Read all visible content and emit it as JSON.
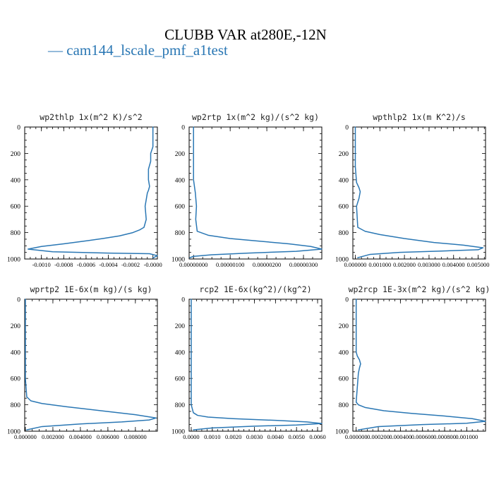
{
  "title": "CLUBB VAR at280E,-12N",
  "legend": {
    "label": "— cam144_lscale_pmf_a1test",
    "color": "#2a77b4"
  },
  "colors": {
    "series": "#2a77b4",
    "axis": "#000000"
  },
  "chart_data": [
    {
      "type": "line",
      "title": "wp2thlp  1x(m^2 K)/s^2",
      "series_name": "cam144_lscale_pmf_a1test",
      "xlim": [
        -0.00115,
        4e-05
      ],
      "ylim": [
        1000,
        0
      ],
      "yticks": [
        0,
        200,
        400,
        600,
        800,
        1000
      ],
      "xticks": [
        -0.001,
        -0.0008,
        -0.0006,
        -0.0004,
        -0.0002,
        0.0
      ],
      "xticklabels": [
        "-0.0010",
        "-0.0008",
        "-0.0006",
        "-0.0004",
        "-0.0002",
        "-0.0000"
      ],
      "x": [
        0.0,
        0.0,
        0.0,
        0.0,
        -2e-05,
        -2e-05,
        -4e-05,
        -4e-05,
        -3e-05,
        -4e-05,
        -5e-05,
        -6e-05,
        -7e-05,
        -6e-05,
        -8e-05,
        -0.00012,
        -0.00018,
        -0.0003,
        -0.00045,
        -0.00062,
        -0.0008,
        -0.001,
        -0.00112,
        -0.0009,
        -0.0004,
        -3e-05,
        4e-05,
        0.0
      ],
      "y": [
        0,
        50,
        100,
        150,
        200,
        260,
        320,
        400,
        450,
        480,
        500,
        550,
        600,
        700,
        760,
        780,
        800,
        825,
        845,
        865,
        885,
        905,
        925,
        945,
        955,
        960,
        975,
        992
      ]
    },
    {
      "type": "line",
      "title": "wp2rtp  1x(m^2 kg)/(s^2 kg)",
      "series_name": "cam144_lscale_pmf_a1test",
      "xlim": [
        -1.2e-07,
        3.5e-06
      ],
      "ylim": [
        1000,
        0
      ],
      "yticks": [
        0,
        200,
        400,
        600,
        800,
        1000
      ],
      "xticks": [
        0.0,
        1e-06,
        2e-06,
        3e-06
      ],
      "xticklabels": [
        "0.00000000",
        "0.00000100",
        "0.00000200",
        "0.00000300"
      ],
      "x": [
        0.0,
        0.0,
        0.0,
        5e-08,
        8e-08,
        6e-08,
        1e-07,
        4e-07,
        1e-06,
        1.8e-06,
        2.6e-06,
        3.2e-06,
        3.5e-06,
        2.8e-06,
        1.5e-06,
        5e-07,
        0.0,
        -1e-07
      ],
      "y": [
        0,
        200,
        400,
        500,
        600,
        700,
        790,
        820,
        845,
        865,
        885,
        905,
        925,
        942,
        955,
        968,
        980,
        990
      ]
    },
    {
      "type": "line",
      "title": "wpthlp2  1x(m K^2)/s",
      "series_name": "cam144_lscale_pmf_a1test",
      "xlim": [
        -0.0001,
        0.0053
      ],
      "ylim": [
        1000,
        0
      ],
      "yticks": [
        0,
        200,
        400,
        600,
        800,
        1000
      ],
      "xticks": [
        0.0,
        0.001,
        0.002,
        0.003,
        0.004,
        0.005
      ],
      "xticklabels": [
        "0.000000",
        "0.001000",
        "0.002000",
        "0.003000",
        "0.004000",
        "0.005000"
      ],
      "x": [
        0.0,
        0.0,
        5e-05,
        0.00015,
        0.0002,
        0.00015,
        5e-05,
        0.0001,
        0.0004,
        0.001,
        0.002,
        0.0032,
        0.0044,
        0.0052,
        0.005,
        0.0035,
        0.0018,
        0.0006,
        0.0001
      ],
      "y": [
        0,
        300,
        420,
        460,
        490,
        540,
        600,
        760,
        790,
        815,
        845,
        875,
        895,
        915,
        930,
        940,
        950,
        965,
        990
      ]
    },
    {
      "type": "line",
      "title": "wprtp2  1E-6x(m kg)/(s kg)",
      "series_name": "cam144_lscale_pmf_a1test",
      "xlim": [
        -5e-05,
        0.0096
      ],
      "ylim": [
        1000,
        0
      ],
      "yticks": [
        0,
        200,
        400,
        600,
        800,
        1000
      ],
      "xticks": [
        0.0,
        0.002,
        0.004,
        0.006,
        0.008
      ],
      "xticklabels": [
        "0.000000",
        "0.002000",
        "0.004000",
        "0.006000",
        "0.008000"
      ],
      "x": [
        0.0,
        0.0,
        0.0001,
        0.0004,
        0.0012,
        0.003,
        0.0055,
        0.008,
        0.0095,
        0.009,
        0.007,
        0.004,
        0.0012,
        0.0001
      ],
      "y": [
        0,
        600,
        740,
        770,
        790,
        815,
        845,
        875,
        900,
        915,
        930,
        945,
        965,
        990
      ]
    },
    {
      "type": "line",
      "title": "rcp2  1E-6x(kg^2)/(kg^2)",
      "series_name": "cam144_lscale_pmf_a1test",
      "xlim": [
        -0.0001,
        0.0062
      ],
      "ylim": [
        1000,
        0
      ],
      "yticks": [
        0,
        200,
        400,
        600,
        800,
        1000
      ],
      "xticks": [
        0.0,
        0.001,
        0.002,
        0.003,
        0.004,
        0.005,
        0.006
      ],
      "xticklabels": [
        "0.0000",
        "0.0010",
        "0.0020",
        "0.0030",
        "0.0040",
        "0.0050",
        "0.0060"
      ],
      "x": [
        0.0,
        0.0,
        0.0001,
        0.0003,
        0.0008,
        0.002,
        0.004,
        0.0055,
        0.0062,
        0.005,
        0.003,
        0.001,
        0.0001
      ],
      "y": [
        0,
        800,
        860,
        880,
        893,
        905,
        918,
        930,
        942,
        953,
        962,
        975,
        990
      ]
    },
    {
      "type": "line",
      "title": "wp2rcp  1E-3x(m^2 kg)/(s^2 kg)",
      "series_name": "cam144_lscale_pmf_a1test",
      "xlim": [
        -3e-05,
        0.00117
      ],
      "ylim": [
        1000,
        0
      ],
      "yticks": [
        0,
        200,
        400,
        600,
        800,
        1000
      ],
      "xticks": [
        0.0,
        0.0002,
        0.0004,
        0.0006,
        0.0008,
        0.001
      ],
      "xticklabels": [
        "0.000000",
        "0.000200",
        "0.000400",
        "0.000600",
        "0.000800",
        "0.001000"
      ],
      "x": [
        0.0,
        0.0,
        1e-05,
        3e-05,
        4e-05,
        3e-05,
        2e-05,
        0.0,
        2e-05,
        8e-05,
        0.00025,
        0.0005,
        0.0008,
        0.00105,
        0.00117,
        0.001,
        0.0006,
        0.0002,
        2e-05
      ],
      "y": [
        0,
        400,
        430,
        460,
        490,
        520,
        560,
        780,
        800,
        820,
        845,
        865,
        885,
        905,
        925,
        940,
        950,
        965,
        990
      ]
    }
  ]
}
